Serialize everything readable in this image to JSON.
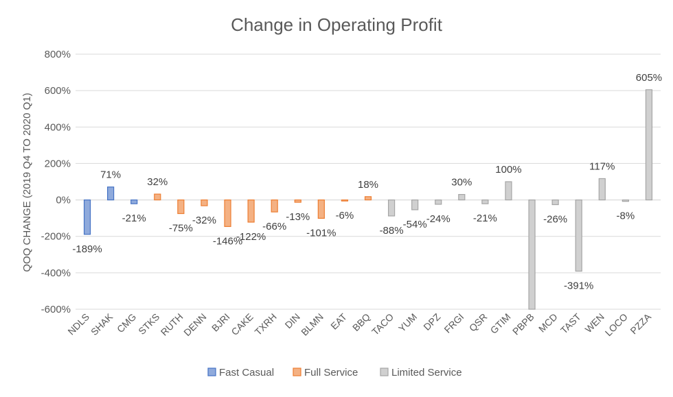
{
  "chart_data": {
    "type": "bar",
    "title": "Change in Operating Profit",
    "ylabel": "QOQ CHANGE (2019 Q4 TO 2020 Q1)",
    "xlabel": "",
    "ylim": [
      -600,
      800
    ],
    "yticks": [
      800,
      600,
      400,
      200,
      0,
      -200,
      -400,
      -600
    ],
    "ytick_labels": [
      "800%",
      "600%",
      "400%",
      "200%",
      "0%",
      "-200%",
      "-400%",
      "-600%"
    ],
    "grid": true,
    "legend_position": "bottom",
    "series": [
      {
        "name": "Fast Casual",
        "color": "#4472C4"
      },
      {
        "name": "Full Service",
        "color": "#ED7D31"
      },
      {
        "name": "Limited Service",
        "color": "#A5A5A5"
      }
    ],
    "categories": [
      "NDLS",
      "SHAK",
      "CMG",
      "STKS",
      "RUTH",
      "DENN",
      "BJRI",
      "CAKE",
      "TXRH",
      "DIN",
      "BLMN",
      "EAT",
      "BBQ",
      "TACO",
      "YUM",
      "DPZ",
      "FRGI",
      "QSR",
      "GTIM",
      "PBPB",
      "MCD",
      "TAST",
      "WEN",
      "LOCO",
      "PZZA"
    ],
    "values": [
      -189,
      71,
      -21,
      32,
      -75,
      -32,
      -146,
      -122,
      -66,
      -13,
      -101,
      -6,
      18,
      -88,
      -54,
      -24,
      30,
      -21,
      100,
      -605,
      -26,
      -391,
      117,
      -8,
      605
    ],
    "data_labels": [
      "-189%",
      "71%",
      "-21%",
      "32%",
      "-75%",
      "-32%",
      "-146%",
      "-122%",
      "-66%",
      "-13%",
      "-101%",
      "-6%",
      "18%",
      "-88%",
      "-54%",
      "-24%",
      "30%",
      "-21%",
      "100%",
      "",
      "-26%",
      "-391%",
      "117%",
      "-8%",
      "605%"
    ],
    "series_index": [
      0,
      0,
      0,
      1,
      1,
      1,
      1,
      1,
      1,
      1,
      1,
      1,
      1,
      2,
      2,
      2,
      2,
      2,
      2,
      2,
      2,
      2,
      2,
      2,
      2
    ]
  }
}
